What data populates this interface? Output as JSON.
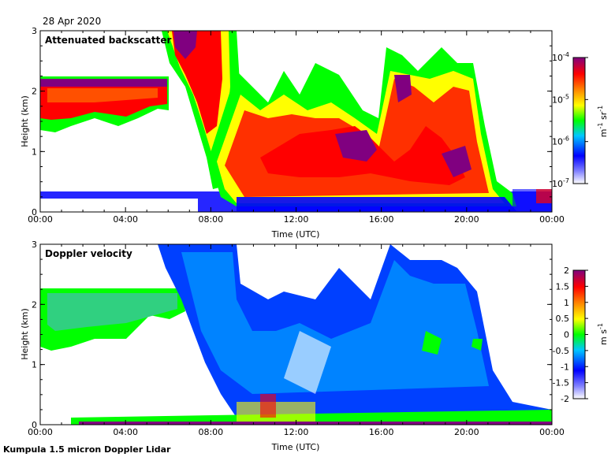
{
  "header": {
    "date": "28 Apr 2020"
  },
  "footer": {
    "instrument": "Kumpula 1.5 micron Doppler Lidar"
  },
  "chart_data": [
    {
      "type": "heatmap",
      "title": "Attenuated backscatter",
      "xlabel": "Time (UTC)",
      "ylabel": "Height (km)",
      "x_ticks": [
        "00:00",
        "04:00",
        "08:00",
        "12:00",
        "16:00",
        "20:00",
        "00:00"
      ],
      "x_range_hours": [
        0,
        24
      ],
      "y_ticks": [
        "0",
        "1",
        "2",
        "3"
      ],
      "ylim": [
        0,
        3
      ],
      "colorbar": {
        "scale": "log",
        "range": [
          1e-07,
          0.0001
        ],
        "tick_labels": [
          "10-7",
          "10-6",
          "10-5",
          "10-4"
        ],
        "unit_label": "m-1 sr-1",
        "colormap": [
          "#ffffff",
          "#0000ff",
          "#00c8ff",
          "#00ff00",
          "#ffff00",
          "#ff8000",
          "#ff0000",
          "#800080"
        ]
      },
      "features": [
        {
          "desc": "elevated layer",
          "time_h": [
            0,
            6
          ],
          "height_km": [
            1.2,
            2.25
          ],
          "intensity": "high"
        },
        {
          "desc": "descending cloud",
          "time_h": [
            5.5,
            9
          ],
          "height_km": [
            0.6,
            3.0
          ],
          "intensity": "very high"
        },
        {
          "desc": "boundary layer aerosol",
          "time_h": [
            8,
            22
          ],
          "height_km": [
            0.2,
            1.5
          ],
          "intensity": "high"
        },
        {
          "desc": "convective plumes",
          "time_h": [
            15,
            21
          ],
          "height_km": [
            0.3,
            2.8
          ],
          "intensity": "high"
        },
        {
          "desc": "surface layer",
          "time_h": [
            0,
            24
          ],
          "height_km": [
            0,
            0.3
          ],
          "intensity": "low"
        }
      ]
    },
    {
      "type": "heatmap",
      "title": "Doppler velocity",
      "xlabel": "Time (UTC)",
      "ylabel": "Height (km)",
      "x_ticks": [
        "00:00",
        "04:00",
        "08:00",
        "12:00",
        "16:00",
        "20:00",
        "00:00"
      ],
      "x_range_hours": [
        0,
        24
      ],
      "y_ticks": [
        "0",
        "1",
        "2",
        "3"
      ],
      "ylim": [
        0,
        3
      ],
      "colorbar": {
        "scale": "linear",
        "range": [
          -2,
          2
        ],
        "tick_labels": [
          "2",
          "1.5",
          "1",
          "0.5",
          "0",
          "-0.5",
          "-1",
          "-1.5",
          "-2"
        ],
        "unit_label": "m s-1",
        "colormap": [
          "#ffffff",
          "#0000ff",
          "#00c8ff",
          "#00ff00",
          "#ffff00",
          "#ff8000",
          "#ff0000",
          "#800080"
        ]
      },
      "features": [
        {
          "desc": "elevated layer",
          "time_h": [
            0,
            6.5
          ],
          "height_km": [
            1.2,
            2.25
          ],
          "velocity": "near 0 to -0.3"
        },
        {
          "desc": "descending precipitation",
          "time_h": [
            6,
            23
          ],
          "height_km": [
            0.1,
            3.0
          ],
          "velocity": "-0.8 to -1.5"
        },
        {
          "desc": "near-surface turbulence",
          "time_h": [
            2,
            24
          ],
          "height_km": [
            0,
            0.3
          ],
          "velocity": "mixed -2 to 2"
        }
      ]
    }
  ]
}
